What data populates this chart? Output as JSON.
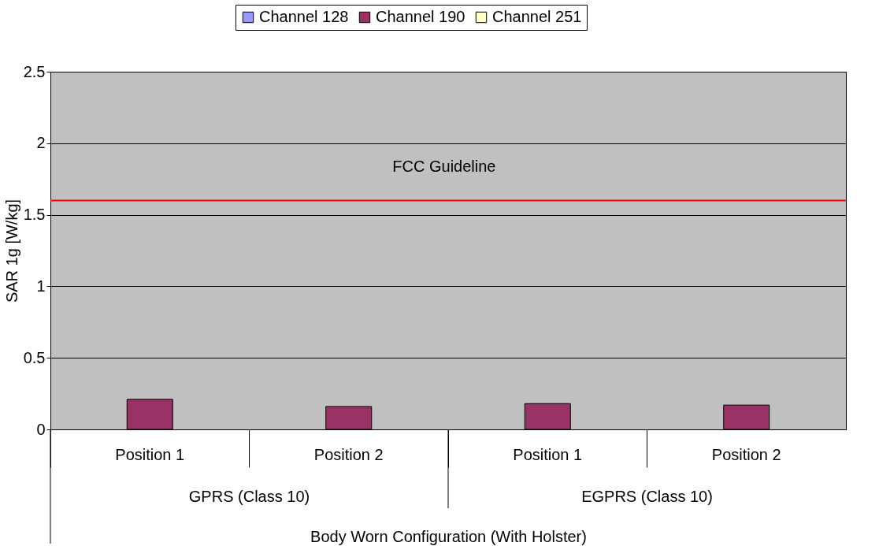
{
  "chart_data": {
    "type": "bar",
    "categories": [
      "Position 1",
      "Position 2",
      "Position 1",
      "Position 2"
    ],
    "xlabel": "Body Worn Configuration (With Holster)",
    "ylabel": "SAR 1g [W/kg]",
    "series": [
      {
        "name": "Channel 128",
        "color": "#9999ff",
        "values": [
          null,
          null,
          null,
          null
        ]
      },
      {
        "name": "Channel 190",
        "color": "#993366",
        "values": [
          0.21,
          0.16,
          0.18,
          0.17
        ]
      },
      {
        "name": "Channel 251",
        "color": "#ffffcc",
        "values": [
          null,
          null,
          null,
          null
        ]
      }
    ],
    "ylim": [
      0,
      2.5
    ],
    "yticks": [
      0,
      0.5,
      1,
      1.5,
      2,
      2.5
    ],
    "grid": "y",
    "legend": "top",
    "ref_lines": [
      {
        "axis": "y",
        "value": 1.6,
        "label": "FCC Guideline",
        "color": "#ff0000"
      }
    ],
    "annotations": [
      "GPRS (Class 10)",
      "EGPRS (Class 10)"
    ]
  }
}
